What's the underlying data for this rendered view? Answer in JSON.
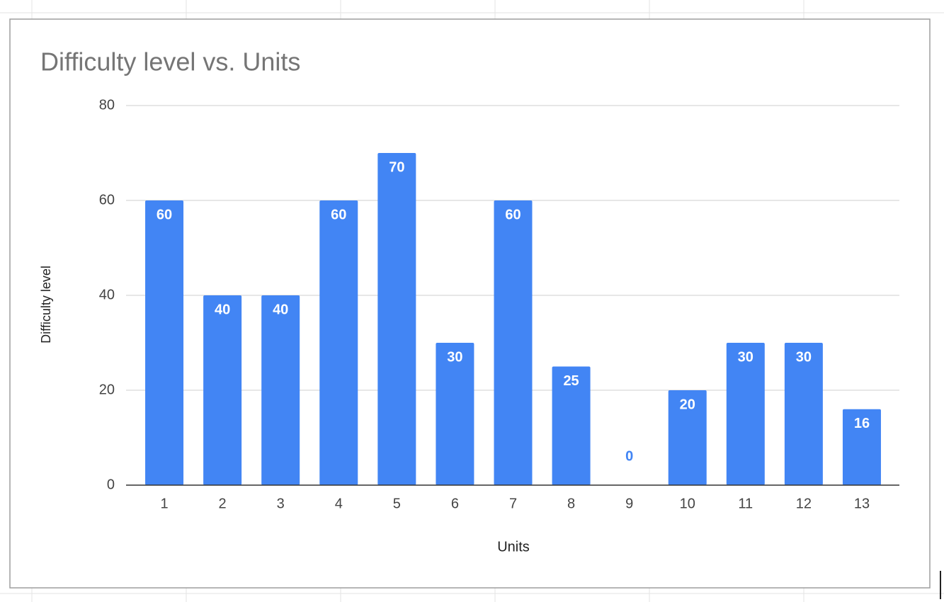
{
  "chart_data": {
    "type": "bar",
    "title": "Difficulty level vs. Units",
    "x_label": "Units",
    "y_label": "Difficulty level",
    "categories": [
      "1",
      "2",
      "3",
      "4",
      "5",
      "6",
      "7",
      "8",
      "9",
      "10",
      "11",
      "12",
      "13"
    ],
    "values": [
      60,
      40,
      40,
      60,
      70,
      30,
      60,
      25,
      0,
      20,
      30,
      30,
      16
    ],
    "color": "#4285f4",
    "ylim": [
      0,
      80
    ],
    "yticks": [
      0,
      20,
      40,
      60,
      80
    ],
    "grid": true
  }
}
